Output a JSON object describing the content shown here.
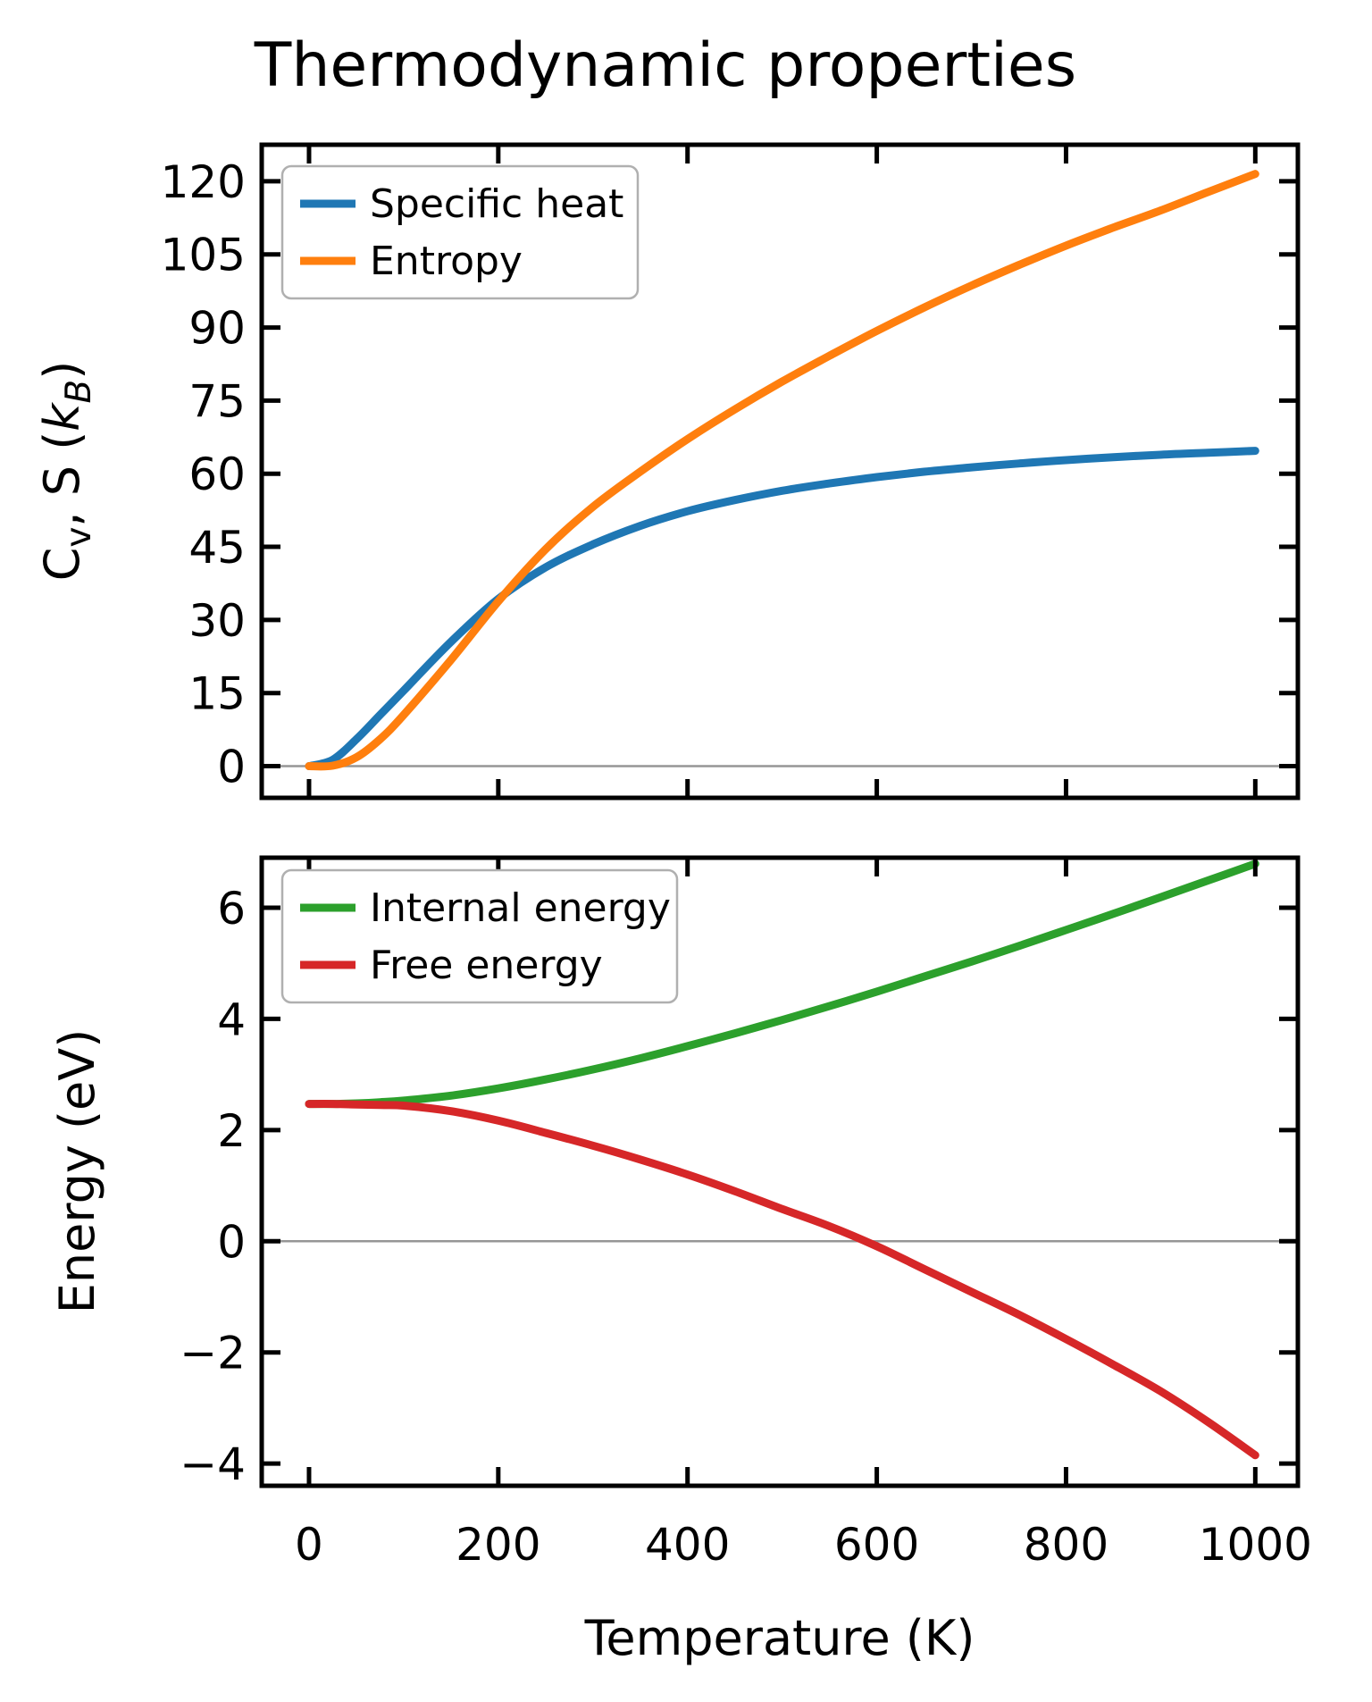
{
  "title": "Thermodynamic properties",
  "figure": {
    "background": "#ffffff",
    "axes_color": "#000000",
    "grid_zero_line_color": "#969696",
    "legend_border_color": "#b0b0b0"
  },
  "chart_data": [
    {
      "id": "thermal-properties",
      "type": "line",
      "ylabel": "Cv, S (kB)",
      "ylabel_parts": [
        {
          "text": "C",
          "style": ""
        },
        {
          "text": "v",
          "style": "sub"
        },
        {
          "text": ", S (",
          "style": ""
        },
        {
          "text": "k",
          "style": "i"
        },
        {
          "text": "B",
          "style": "subi"
        },
        {
          "text": ")",
          "style": ""
        }
      ],
      "xlabel": "",
      "xlim": [
        -50,
        1045
      ],
      "ylim": [
        -6.5,
        127.5
      ],
      "xticks": [
        0,
        200,
        400,
        600,
        800,
        1000
      ],
      "xticklabels": [],
      "yticks": [
        0,
        15,
        30,
        45,
        60,
        75,
        90,
        105,
        120
      ],
      "zero_line": 0,
      "legend_position": "upper-left",
      "x": [
        0,
        25,
        50,
        75,
        100,
        150,
        200,
        250,
        300,
        350,
        400,
        450,
        500,
        550,
        600,
        650,
        700,
        750,
        800,
        850,
        900,
        950,
        1000
      ],
      "series": [
        {
          "name": "Specific heat",
          "color": "#1f77b4",
          "values": [
            0,
            1.3,
            5.5,
            10.5,
            15.5,
            25.5,
            34.3,
            40.8,
            45.5,
            49.3,
            52.3,
            54.6,
            56.5,
            58.0,
            59.3,
            60.4,
            61.3,
            62.1,
            62.8,
            63.4,
            63.9,
            64.3,
            64.7
          ]
        },
        {
          "name": "Entropy",
          "color": "#ff7f0e",
          "values": [
            0,
            0.1,
            1.8,
            5.5,
            10.5,
            21.8,
            33.8,
            44.5,
            53.2,
            60.4,
            67.1,
            73.2,
            78.9,
            84.2,
            89.3,
            94.1,
            98.6,
            102.8,
            106.8,
            110.5,
            114.0,
            117.8,
            121.5
          ]
        }
      ]
    },
    {
      "id": "energies",
      "type": "line",
      "ylabel": "Energy (eV)",
      "ylabel_parts": [
        {
          "text": "Energy (eV)",
          "style": ""
        }
      ],
      "xlabel": "Temperature (K)",
      "xlim": [
        -50,
        1045
      ],
      "ylim": [
        -4.4,
        6.9
      ],
      "xticks": [
        0,
        200,
        400,
        600,
        800,
        1000
      ],
      "xticklabels": [
        "0",
        "200",
        "400",
        "600",
        "800",
        "1000"
      ],
      "yticks": [
        -4,
        -2,
        0,
        2,
        4,
        6
      ],
      "zero_line": 0,
      "legend_position": "upper-left",
      "x": [
        0,
        25,
        50,
        75,
        100,
        150,
        200,
        250,
        300,
        350,
        400,
        450,
        500,
        550,
        600,
        650,
        700,
        750,
        800,
        850,
        900,
        950,
        1000
      ],
      "series": [
        {
          "name": "Internal energy",
          "color": "#2ca02c",
          "values": [
            2.47,
            2.47,
            2.48,
            2.5,
            2.53,
            2.62,
            2.75,
            2.91,
            3.09,
            3.29,
            3.51,
            3.74,
            3.98,
            4.23,
            4.49,
            4.76,
            5.03,
            5.31,
            5.6,
            5.89,
            6.19,
            6.49,
            6.79
          ]
        },
        {
          "name": "Free energy",
          "color": "#d62728",
          "values": [
            2.47,
            2.47,
            2.46,
            2.45,
            2.44,
            2.34,
            2.17,
            1.95,
            1.72,
            1.47,
            1.2,
            0.9,
            0.58,
            0.27,
            -0.09,
            -0.5,
            -0.91,
            -1.32,
            -1.76,
            -2.22,
            -2.7,
            -3.25,
            -3.85
          ]
        }
      ]
    }
  ]
}
